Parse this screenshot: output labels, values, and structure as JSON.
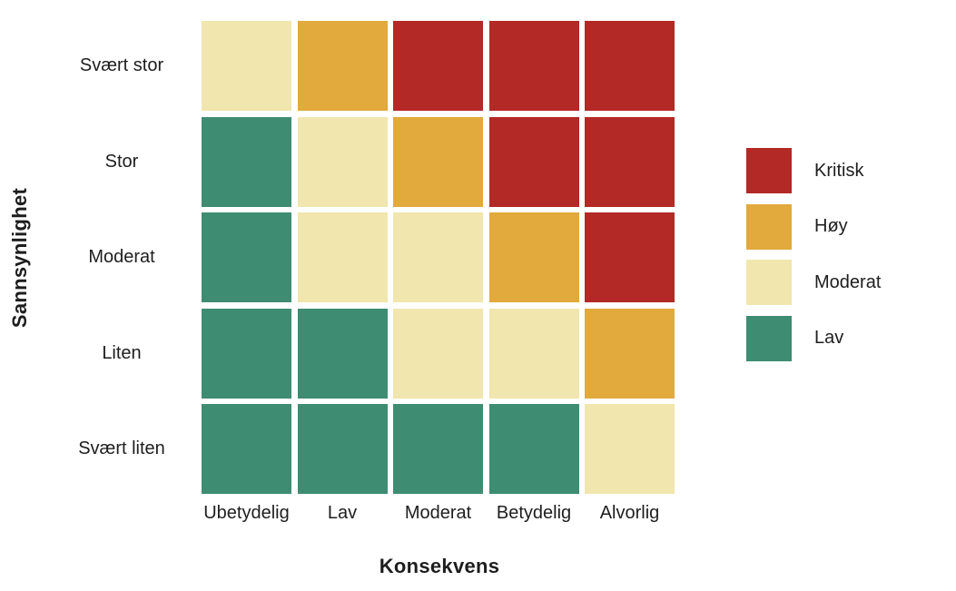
{
  "chart_data": {
    "type": "heatmap",
    "title": "",
    "xlabel": "Konsekvens",
    "ylabel": "Sannsynlighet",
    "x_categories": [
      "Ubetydelig",
      "Lav",
      "Moderat",
      "Betydelig",
      "Alvorlig"
    ],
    "y_categories": [
      "Svært stor",
      "Stor",
      "Moderat",
      "Liten",
      "Svært liten"
    ],
    "cells": [
      [
        "Moderat",
        "Høy",
        "Kritisk",
        "Kritisk",
        "Kritisk"
      ],
      [
        "Lav",
        "Moderat",
        "Høy",
        "Kritisk",
        "Kritisk"
      ],
      [
        "Lav",
        "Moderat",
        "Moderat",
        "Høy",
        "Kritisk"
      ],
      [
        "Lav",
        "Lav",
        "Moderat",
        "Moderat",
        "Høy"
      ],
      [
        "Lav",
        "Lav",
        "Lav",
        "Lav",
        "Moderat"
      ]
    ],
    "colors": {
      "Kritisk": "#B32926",
      "Høy": "#E2A93D",
      "Moderat": "#F0E6AE",
      "Lav": "#3E8D72"
    },
    "legend": {
      "position": "right",
      "entries": [
        "Kritisk",
        "Høy",
        "Moderat",
        "Lav"
      ]
    },
    "layout": {
      "background": "#FFFFFF",
      "text_color": "#1E1E1E",
      "grid": "off",
      "cell_gap_color": "#FFFFFF"
    }
  }
}
